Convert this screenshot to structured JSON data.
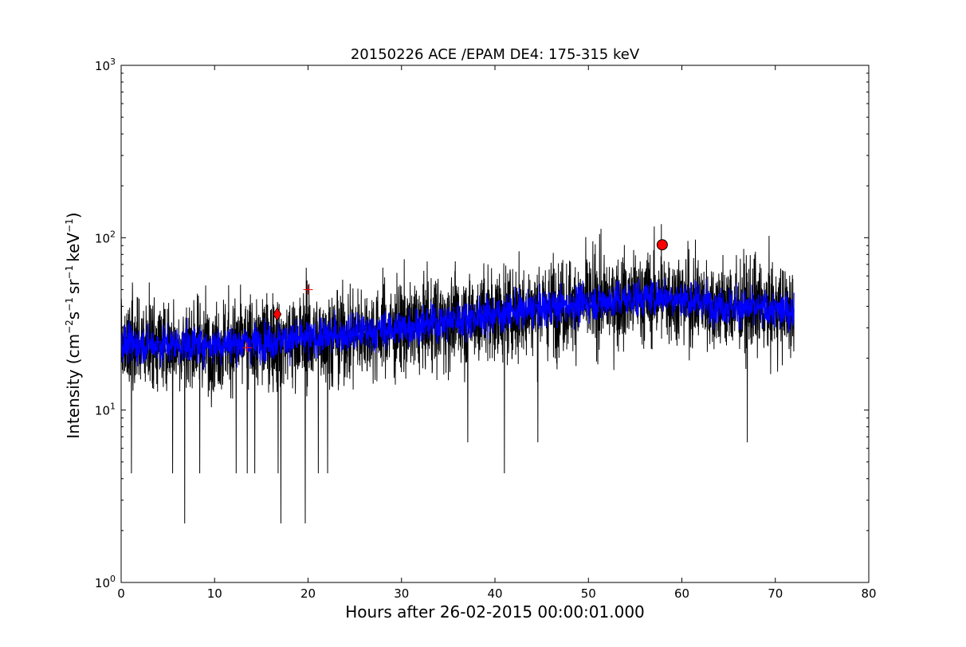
{
  "chart_data": {
    "type": "line",
    "title": "20150226 ACE /EPAM DE4: 175-315 keV",
    "xlabel": "Hours after 26-02-2015 00:00:01.000",
    "ylabel": {
      "prefix": "Intensity (cm",
      "exp1": "−2",
      "part2": "s",
      "exp2": "−1",
      "part3": "sr",
      "exp3": "−1",
      "part4": "keV",
      "exp4": "−1",
      "suffix": ")"
    },
    "xlim": [
      0,
      80
    ],
    "ylim": [
      1,
      1000
    ],
    "yscale": "log",
    "x_ticks": [
      0,
      10,
      20,
      30,
      40,
      50,
      60,
      70,
      80
    ],
    "y_ticks": [
      {
        "value": 1,
        "base": "10",
        "exp": "0"
      },
      {
        "value": 10,
        "base": "10",
        "exp": "1"
      },
      {
        "value": 100,
        "base": "10",
        "exp": "2"
      },
      {
        "value": 1000,
        "base": "10",
        "exp": "3"
      }
    ],
    "grid": false,
    "series": [
      {
        "style": "noisy-raw",
        "color": "#000000",
        "x_range": [
          0,
          72
        ],
        "trend": [
          [
            0,
            24
          ],
          [
            10,
            24
          ],
          [
            20,
            26
          ],
          [
            30,
            30
          ],
          [
            40,
            36
          ],
          [
            50,
            42
          ],
          [
            58,
            46
          ],
          [
            65,
            40
          ],
          [
            72,
            37
          ]
        ],
        "spread_decades": 0.42,
        "spikes_up": [
          [
            1.2,
            55
          ],
          [
            3,
            55
          ],
          [
            14.3,
            64
          ],
          [
            19.8,
            67
          ],
          [
            30.3,
            75
          ],
          [
            51.2,
            105
          ],
          [
            57.8,
            120
          ],
          [
            67.8,
            80
          ],
          [
            38.8,
            71
          ]
        ],
        "spikes_down": [
          [
            1.1,
            4.3
          ],
          [
            6.8,
            2.2
          ],
          [
            8.4,
            4.3
          ],
          [
            12.3,
            4.3
          ],
          [
            13.5,
            4.3
          ],
          [
            14.3,
            4.3
          ],
          [
            17.1,
            2.2
          ],
          [
            19.7,
            2.2
          ],
          [
            21.1,
            4.3
          ],
          [
            22.1,
            4.3
          ],
          [
            37.1,
            6.5
          ],
          [
            41,
            4.3
          ],
          [
            44.6,
            6.5
          ],
          [
            67,
            6.5
          ],
          [
            5.5,
            4.3
          ],
          [
            16.8,
            4.3
          ]
        ]
      },
      {
        "style": "smoothed",
        "color": "#0000ff",
        "x_range": [
          0,
          72
        ],
        "trend": [
          [
            0,
            24
          ],
          [
            10,
            24
          ],
          [
            20,
            26
          ],
          [
            30,
            30
          ],
          [
            40,
            36
          ],
          [
            50,
            42
          ],
          [
            58,
            46
          ],
          [
            65,
            40
          ],
          [
            72,
            37
          ]
        ],
        "spread_decades": 0.17
      }
    ],
    "markers": [
      {
        "shape": "diamond",
        "color": "#ff0000",
        "x": 16.7,
        "y": 36
      },
      {
        "shape": "circle",
        "color": "#ff0000",
        "x": 57.9,
        "y": 91
      },
      {
        "shape": "plus",
        "color": "#ff0000",
        "x": 13.5,
        "y": 23
      },
      {
        "shape": "plus",
        "color": "#ff0000",
        "x": 20.0,
        "y": 50
      }
    ]
  }
}
